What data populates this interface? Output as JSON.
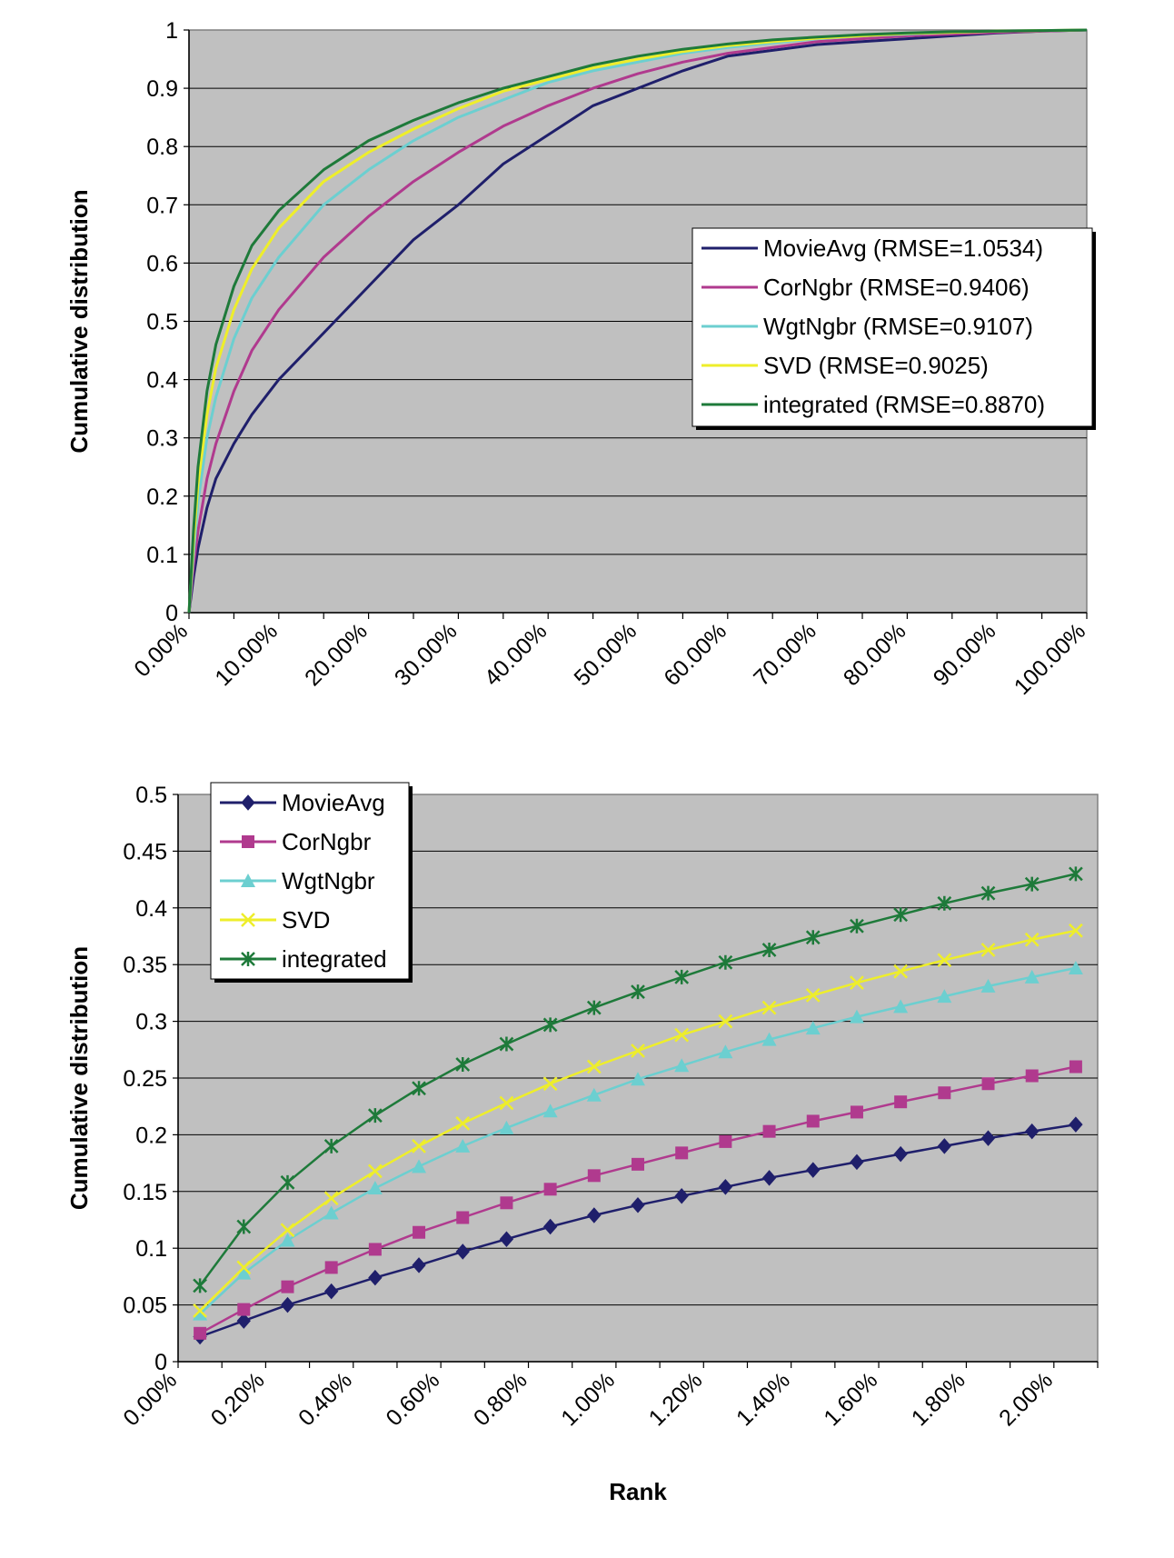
{
  "chart_data": [
    {
      "type": "line",
      "ylabel": "Cumulative distribution",
      "xlabel": "",
      "ylim": [
        0,
        1
      ],
      "xlim": [
        0,
        100
      ],
      "y_ticks": [
        "0",
        "0.1",
        "0.2",
        "0.3",
        "0.4",
        "0.5",
        "0.6",
        "0.7",
        "0.8",
        "0.9",
        "1"
      ],
      "x_ticks": [
        "0.00%",
        "10.00%",
        "20.00%",
        "30.00%",
        "40.00%",
        "50.00%",
        "60.00%",
        "70.00%",
        "80.00%",
        "90.00%",
        "100.00%"
      ],
      "grid": "horizontal",
      "legend_position": "right",
      "series": [
        {
          "name": "MovieAvg (RMSE=1.0534)",
          "color": "#1f1f6b",
          "x": [
            0,
            0.5,
            1,
            2,
            3,
            5,
            7,
            10,
            15,
            20,
            25,
            30,
            35,
            40,
            45,
            50,
            55,
            60,
            65,
            70,
            75,
            80,
            85,
            90,
            95,
            100
          ],
          "y": [
            0.0,
            0.06,
            0.11,
            0.18,
            0.23,
            0.29,
            0.34,
            0.4,
            0.48,
            0.56,
            0.64,
            0.7,
            0.77,
            0.82,
            0.87,
            0.9,
            0.93,
            0.955,
            0.965,
            0.975,
            0.98,
            0.985,
            0.99,
            0.995,
            0.998,
            1.0
          ]
        },
        {
          "name": "CorNgbr (RMSE=0.9406)",
          "color": "#b03a8e",
          "x": [
            0,
            0.5,
            1,
            2,
            3,
            5,
            7,
            10,
            15,
            20,
            25,
            30,
            35,
            40,
            45,
            50,
            55,
            60,
            65,
            70,
            75,
            80,
            85,
            90,
            95,
            100
          ],
          "y": [
            0.0,
            0.08,
            0.14,
            0.23,
            0.29,
            0.38,
            0.45,
            0.52,
            0.61,
            0.68,
            0.74,
            0.79,
            0.835,
            0.87,
            0.9,
            0.925,
            0.945,
            0.96,
            0.97,
            0.98,
            0.985,
            0.99,
            0.993,
            0.996,
            0.998,
            1.0
          ]
        },
        {
          "name": "WgtNgbr (RMSE=0.9107)",
          "color": "#6ccfd0",
          "x": [
            0,
            0.5,
            1,
            2,
            3,
            5,
            7,
            10,
            15,
            20,
            25,
            30,
            35,
            40,
            45,
            50,
            55,
            60,
            65,
            70,
            75,
            80,
            85,
            90,
            95,
            100
          ],
          "y": [
            0.0,
            0.1,
            0.19,
            0.3,
            0.37,
            0.47,
            0.54,
            0.61,
            0.7,
            0.76,
            0.81,
            0.85,
            0.88,
            0.91,
            0.93,
            0.945,
            0.96,
            0.97,
            0.978,
            0.985,
            0.99,
            0.993,
            0.996,
            0.998,
            0.999,
            1.0
          ]
        },
        {
          "name": "SVD (RMSE=0.9025)",
          "color": "#eeee2a",
          "x": [
            0,
            0.5,
            1,
            2,
            3,
            5,
            7,
            10,
            15,
            20,
            25,
            30,
            35,
            40,
            45,
            50,
            55,
            60,
            65,
            70,
            75,
            80,
            85,
            90,
            95,
            100
          ],
          "y": [
            0.0,
            0.12,
            0.22,
            0.34,
            0.42,
            0.52,
            0.59,
            0.66,
            0.74,
            0.79,
            0.83,
            0.865,
            0.895,
            0.915,
            0.935,
            0.95,
            0.963,
            0.973,
            0.98,
            0.986,
            0.99,
            0.994,
            0.996,
            0.998,
            0.999,
            1.0
          ]
        },
        {
          "name": "integrated (RMSE=0.8870)",
          "color": "#1e7a3a",
          "x": [
            0,
            0.5,
            1,
            2,
            3,
            5,
            7,
            10,
            15,
            20,
            25,
            30,
            35,
            40,
            45,
            50,
            55,
            60,
            65,
            70,
            75,
            80,
            85,
            90,
            95,
            100
          ],
          "y": [
            0.0,
            0.14,
            0.25,
            0.38,
            0.46,
            0.56,
            0.63,
            0.69,
            0.76,
            0.81,
            0.845,
            0.875,
            0.9,
            0.92,
            0.94,
            0.955,
            0.967,
            0.976,
            0.983,
            0.988,
            0.992,
            0.995,
            0.997,
            0.998,
            0.999,
            1.0
          ]
        }
      ]
    },
    {
      "type": "line",
      "ylabel": "Cumulative distribution",
      "xlabel": "Rank",
      "ylim": [
        0,
        0.5
      ],
      "xlim": [
        0,
        2.1
      ],
      "y_ticks": [
        "0",
        "0.05",
        "0.1",
        "0.15",
        "0.2",
        "0.25",
        "0.3",
        "0.35",
        "0.4",
        "0.45",
        "0.5"
      ],
      "x_ticks": [
        "0.00%",
        "0.20%",
        "0.40%",
        "0.60%",
        "0.80%",
        "1.00%",
        "1.20%",
        "1.40%",
        "1.60%",
        "1.80%",
        "2.00%"
      ],
      "grid": "horizontal",
      "legend_position": "top-left",
      "x": [
        0.05,
        0.15,
        0.25,
        0.35,
        0.45,
        0.55,
        0.65,
        0.75,
        0.85,
        0.95,
        1.05,
        1.15,
        1.25,
        1.35,
        1.45,
        1.55,
        1.65,
        1.75,
        1.85,
        1.95,
        2.05
      ],
      "series": [
        {
          "name": "MovieAvg",
          "color": "#1f1f6b",
          "marker": "diamond",
          "values": [
            0.022,
            0.036,
            0.05,
            0.062,
            0.074,
            0.085,
            0.097,
            0.108,
            0.119,
            0.129,
            0.138,
            0.146,
            0.154,
            0.162,
            0.169,
            0.176,
            0.183,
            0.19,
            0.197,
            0.203,
            0.209
          ]
        },
        {
          "name": "CorNgbr",
          "color": "#b03a8e",
          "marker": "square",
          "values": [
            0.025,
            0.046,
            0.066,
            0.083,
            0.099,
            0.114,
            0.127,
            0.14,
            0.152,
            0.164,
            0.174,
            0.184,
            0.194,
            0.203,
            0.212,
            0.22,
            0.229,
            0.237,
            0.245,
            0.252,
            0.26
          ]
        },
        {
          "name": "WgtNgbr",
          "color": "#6ccfd0",
          "marker": "triangle",
          "values": [
            0.042,
            0.078,
            0.107,
            0.131,
            0.153,
            0.172,
            0.19,
            0.206,
            0.221,
            0.235,
            0.249,
            0.261,
            0.273,
            0.284,
            0.294,
            0.304,
            0.313,
            0.322,
            0.331,
            0.339,
            0.347
          ]
        },
        {
          "name": "SVD",
          "color": "#eeee2a",
          "marker": "x",
          "values": [
            0.045,
            0.083,
            0.116,
            0.144,
            0.168,
            0.19,
            0.21,
            0.228,
            0.245,
            0.26,
            0.274,
            0.288,
            0.3,
            0.312,
            0.323,
            0.334,
            0.344,
            0.354,
            0.363,
            0.372,
            0.38
          ]
        },
        {
          "name": "integrated",
          "color": "#1e7a3a",
          "marker": "asterisk",
          "values": [
            0.067,
            0.119,
            0.158,
            0.19,
            0.217,
            0.241,
            0.262,
            0.28,
            0.297,
            0.312,
            0.326,
            0.339,
            0.352,
            0.363,
            0.374,
            0.384,
            0.394,
            0.404,
            0.413,
            0.421,
            0.43
          ]
        }
      ]
    }
  ]
}
